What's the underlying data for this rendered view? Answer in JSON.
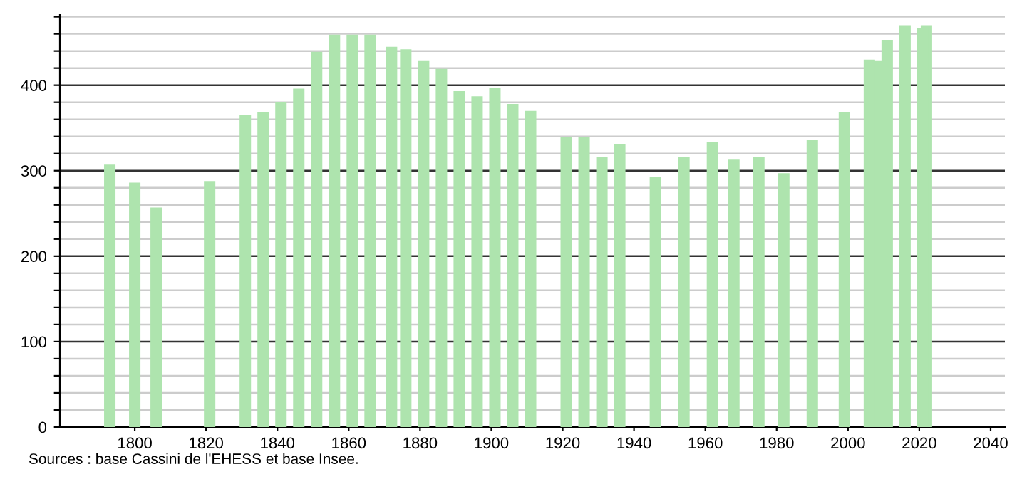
{
  "chart_data": {
    "type": "bar",
    "x": [
      1793,
      1800,
      1806,
      1821,
      1831,
      1836,
      1841,
      1846,
      1851,
      1856,
      1861,
      1866,
      1872,
      1876,
      1881,
      1886,
      1891,
      1896,
      1901,
      1906,
      1911,
      1921,
      1926,
      1931,
      1936,
      1946,
      1954,
      1962,
      1968,
      1975,
      1982,
      1990,
      1999,
      2006,
      2008,
      2011,
      2016,
      2021,
      2022
    ],
    "values": [
      307,
      286,
      257,
      287,
      365,
      369,
      380,
      396,
      439,
      459,
      459,
      459,
      445,
      442,
      429,
      419,
      393,
      387,
      397,
      378,
      370,
      339,
      339,
      316,
      331,
      293,
      316,
      334,
      313,
      316,
      297,
      336,
      369,
      430,
      429,
      453,
      470,
      467,
      470
    ],
    "color": "#aee4ae",
    "xlim": [
      1779,
      2044
    ],
    "xticks": [
      1800,
      1820,
      1840,
      1860,
      1880,
      1900,
      1920,
      1940,
      1960,
      1980,
      2000,
      2020,
      2040
    ],
    "ylim": [
      0,
      483
    ],
    "yticks": [
      0,
      {
        "value": 20,
        "label": null
      },
      {
        "value": 40,
        "label": null
      },
      {
        "value": 60,
        "label": null
      },
      {
        "value": 80,
        "label": null
      },
      100,
      {
        "value": 120,
        "label": null
      },
      {
        "value": 140,
        "label": null
      },
      {
        "value": 160,
        "label": null
      },
      {
        "value": 180,
        "label": null
      },
      200,
      {
        "value": 220,
        "label": null
      },
      {
        "value": 240,
        "label": null
      },
      {
        "value": 260,
        "label": null
      },
      {
        "value": 280,
        "label": null
      },
      300,
      {
        "value": 320,
        "label": null
      },
      {
        "value": 340,
        "label": null
      },
      {
        "value": 360,
        "label": null
      },
      {
        "value": 380,
        "label": null
      },
      400,
      {
        "value": 420,
        "label": null
      },
      {
        "value": 440,
        "label": null
      },
      {
        "value": 460,
        "label": null
      },
      {
        "value": 480,
        "label": null
      }
    ],
    "grid": "y",
    "annotations": [
      "Sources : base Cassini de l'EHESS et base Insee."
    ]
  }
}
